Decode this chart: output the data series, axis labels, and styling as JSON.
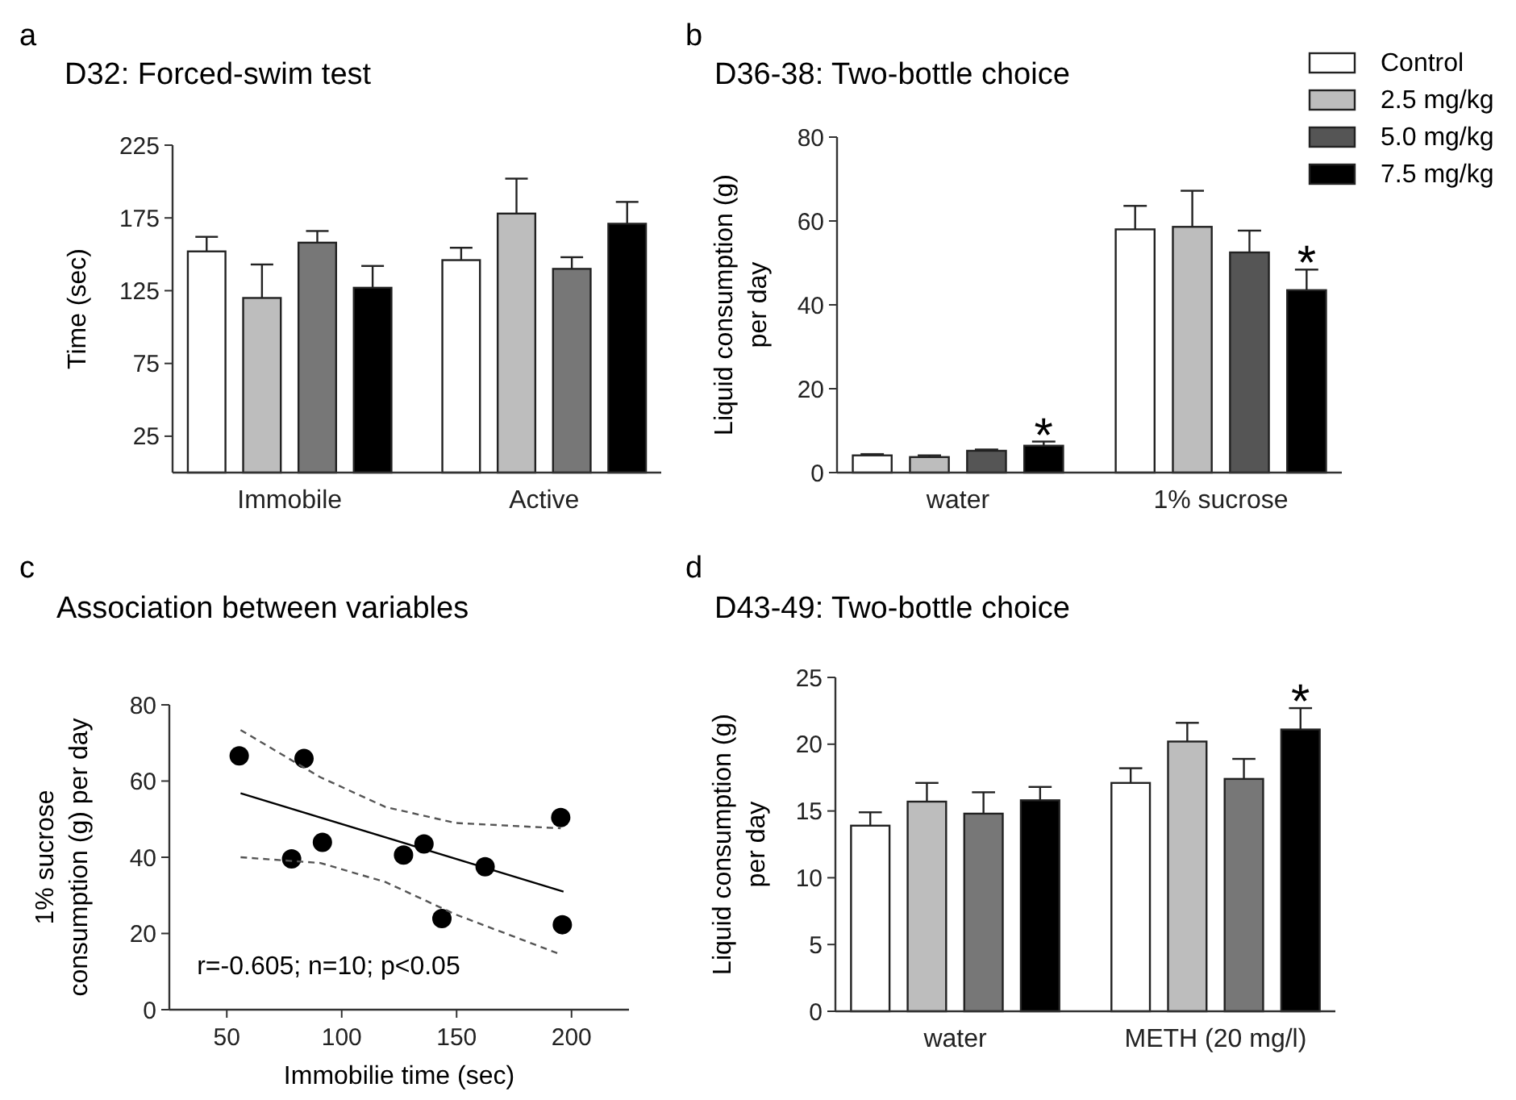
{
  "chart_data": [
    {
      "type": "bar",
      "title": "D32: Forced-swim test",
      "ylabel": "Time (sec)",
      "annotations": [
        "a"
      ],
      "categories": [
        "Immobile",
        "Active"
      ],
      "ylim": [
        0,
        225
      ],
      "yticks": [
        25,
        75,
        125,
        175,
        225
      ],
      "legend": false,
      "series": [
        {
          "color": "#ffffff",
          "values": [
            152,
            146
          ],
          "errors": [
            10,
            8.5
          ]
        },
        {
          "color": "#bdbdbd",
          "values": [
            120,
            178
          ],
          "errors": [
            23,
            24
          ]
        },
        {
          "color": "#777777",
          "values": [
            158,
            140
          ],
          "errors": [
            8,
            8
          ]
        },
        {
          "color": "#000000",
          "values": [
            127,
            171
          ],
          "errors": [
            15,
            15
          ]
        }
      ]
    },
    {
      "type": "bar",
      "title": "D36-38: Two-bottle choice",
      "ylabel": "Liquid consumption (g) per day",
      "annotations": [
        "b"
      ],
      "categories": [
        "water",
        "1% sucrose"
      ],
      "ylim": [
        0,
        80
      ],
      "yticks": [
        0,
        20,
        40,
        60,
        80
      ],
      "legend": "top right",
      "series": [
        {
          "name": "Control",
          "color": "#ffffff",
          "values": [
            4.1,
            58
          ],
          "errors": [
            0.3,
            5.6
          ]
        },
        {
          "name": "2.5 mg/kg",
          "color": "#bdbdbd",
          "values": [
            3.7,
            58.6
          ],
          "errors": [
            0.4,
            8.6
          ]
        },
        {
          "name": "5.0 mg/kg",
          "color": "#555555",
          "values": [
            5.2,
            52.5
          ],
          "errors": [
            0.3,
            5.2
          ]
        },
        {
          "name": "7.5 mg/kg",
          "color": "#000000",
          "values": [
            6.4,
            43.5
          ],
          "errors": [
            1,
            4.9
          ],
          "value_labels": [
            "*",
            "*"
          ]
        }
      ]
    },
    {
      "type": "scatter",
      "title": "Association between variables",
      "xlabel": "Immobilie time (sec)",
      "ylabel": "1% sucrose consumption (g) per day",
      "annotations": [
        "c",
        "r=-0.605; n=10; p<0.05"
      ],
      "xlim": [
        25,
        225
      ],
      "xticks": [
        50,
        100,
        150,
        200
      ],
      "ylim": [
        0,
        80
      ],
      "yticks": [
        0,
        20,
        40,
        60,
        80
      ],
      "marker": "circle",
      "series": [
        {
          "color": "#000000",
          "x": [
            55.4,
            83.6,
            78.2,
            91.6,
            126.9,
            135.8,
            162.4,
            143.6,
            195.3,
            196
          ],
          "values": [
            66.6,
            65.9,
            39.6,
            43.9,
            40.6,
            43.5,
            37.5,
            23.9,
            50.4,
            22.3
          ]
        },
        {
          "type": "line",
          "marker": "none",
          "color": "#000000",
          "line_style": "solid",
          "x": [
            56,
            196.5
          ],
          "values": [
            56.8,
            31
          ]
        },
        {
          "type": "line",
          "marker": "none",
          "color": "#555555",
          "line_style": "dashed",
          "x": [
            56,
            90.7,
            119,
            149.5,
            195.3
          ],
          "values": [
            73.4,
            61,
            53.2,
            49,
            47.6
          ]
        },
        {
          "type": "line",
          "marker": "none",
          "color": "#555555",
          "line_style": "dashed",
          "x": [
            56,
            90.7,
            119,
            149.5,
            195.3
          ],
          "values": [
            40,
            38.5,
            33.5,
            25,
            14.5
          ]
        }
      ]
    },
    {
      "type": "bar",
      "title": "D43-49: Two-bottle choice",
      "ylabel": "Liquid consumption (g) per day",
      "annotations": [
        "d"
      ],
      "categories": [
        "water",
        "METH (20 mg/l)"
      ],
      "ylim": [
        0,
        25
      ],
      "yticks": [
        0,
        5,
        10,
        15,
        20,
        25
      ],
      "legend": false,
      "series": [
        {
          "color": "#ffffff",
          "values": [
            13.9,
            17.1
          ],
          "errors": [
            1,
            1.1
          ]
        },
        {
          "color": "#bdbdbd",
          "values": [
            15.7,
            20.2
          ],
          "errors": [
            1.4,
            1.4
          ]
        },
        {
          "color": "#777777",
          "values": [
            14.8,
            17.4
          ],
          "errors": [
            1.6,
            1.5
          ]
        },
        {
          "color": "#000000",
          "values": [
            15.8,
            21.1
          ],
          "errors": [
            1,
            1.6
          ],
          "value_labels": [
            null,
            "*"
          ]
        }
      ]
    }
  ]
}
